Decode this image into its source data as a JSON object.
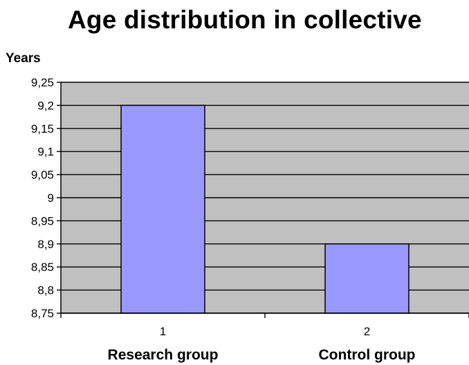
{
  "chart_data": {
    "type": "bar",
    "title": "Age distribution in collective",
    "ylabel": "Years",
    "xlabel": "",
    "categories": [
      "1",
      "2"
    ],
    "category_names": [
      "Research group",
      "Control group"
    ],
    "values": [
      9.2,
      8.9
    ],
    "ylim": [
      8.75,
      9.25
    ],
    "yticks": [
      8.75,
      8.8,
      8.85,
      8.9,
      8.95,
      9,
      9.05,
      9.1,
      9.15,
      9.2,
      9.25
    ],
    "ytick_labels": [
      "8,75",
      "8,8",
      "8,85",
      "8,9",
      "8,95",
      "9",
      "9,05",
      "9,1",
      "9,15",
      "9,2",
      "9,25"
    ],
    "grid": true,
    "colors": {
      "plot_background": "#c0c0c0",
      "bar_fill": "#9999ff",
      "bar_stroke": "#000000",
      "gridline": "#000000"
    }
  }
}
